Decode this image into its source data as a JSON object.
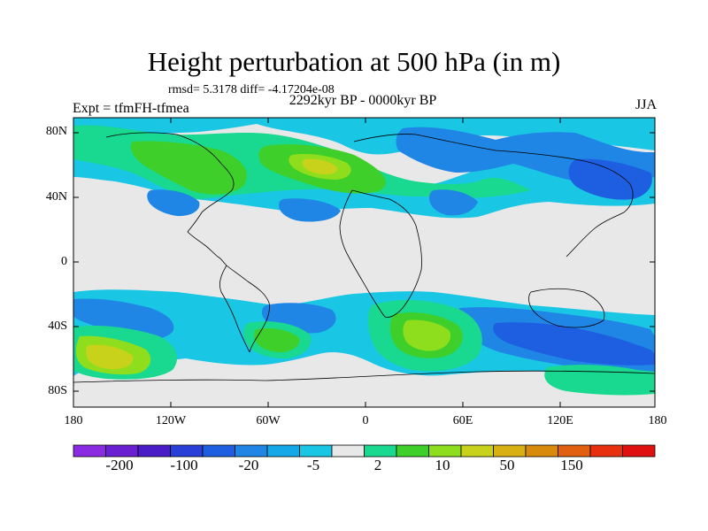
{
  "title": "Height perturbation at 500 hPa (in m)",
  "stats_line": "rmsd= 5.3178 diff= -4.17204e-08",
  "period": "2292kyr BP - 0000kyr BP",
  "experiment": "Expt = tfmFH-tfmea",
  "season": "JJA",
  "lat_ticks": [
    "80N",
    "40N",
    "0",
    "40S",
    "80S"
  ],
  "lon_ticks": [
    "180",
    "120W",
    "60W",
    "0",
    "60E",
    "120E",
    "180"
  ],
  "colorbar": {
    "colors": [
      "#8a2be2",
      "#6a1fd0",
      "#4a1cc8",
      "#2a3fd8",
      "#1d5fe0",
      "#1f86e6",
      "#14a8e8",
      "#19c6e4",
      "#e8e8e8",
      "#19d890",
      "#3ecf2a",
      "#8ede1e",
      "#c8d21a",
      "#d8b012",
      "#d88a0c",
      "#e06010",
      "#e83010",
      "#e01010"
    ],
    "labels": [
      "-200",
      "-100",
      "-20",
      "-5",
      "2",
      "10",
      "50",
      "150"
    ]
  },
  "colors": {
    "background": "#e8e8e8",
    "cyan": "#19c6e4",
    "mid_blue": "#1f86e6",
    "blue": "#1d5fe0",
    "green": "#19d890",
    "lime": "#3ecf2a",
    "yellow_green": "#8ede1e",
    "yellow": "#c8d21a",
    "coast": "#000000"
  }
}
